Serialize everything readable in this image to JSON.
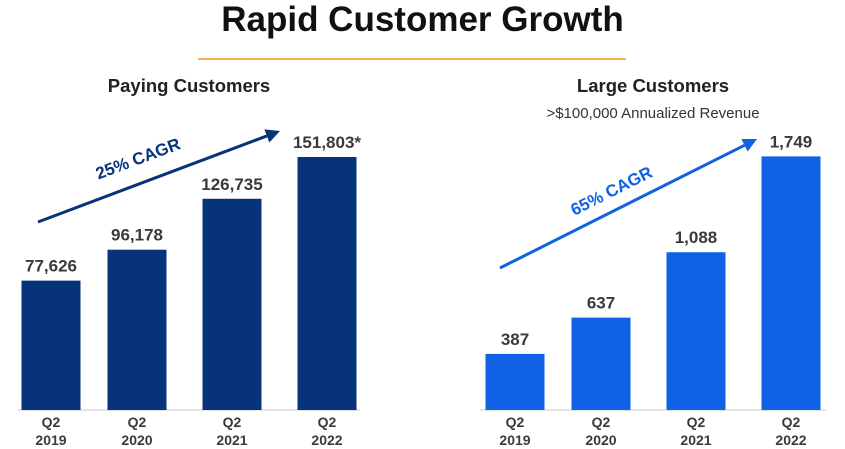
{
  "page": {
    "title": "Rapid Customer Growth",
    "accent_color": "#f5b14a"
  },
  "chart_data": [
    {
      "type": "bar",
      "title": "Paying Customers",
      "subtitle": "",
      "categories": [
        [
          "Q2",
          "2019"
        ],
        [
          "Q2",
          "2020"
        ],
        [
          "Q2",
          "2021"
        ],
        [
          "Q2",
          "2022"
        ]
      ],
      "values": [
        77626,
        96178,
        126735,
        151803
      ],
      "value_labels": [
        "77,626",
        "96,178",
        "126,735",
        "151,803*"
      ],
      "ylim": [
        0,
        180000
      ],
      "grid": false,
      "bar_color": "#07337a",
      "annotation": {
        "text": "25% CAGR",
        "color": "#07337a"
      },
      "xlabel": "",
      "ylabel": ""
    },
    {
      "type": "bar",
      "title": "Large Customers",
      "subtitle": ">$100,000 Annualized Revenue",
      "categories": [
        [
          "Q2",
          "2019"
        ],
        [
          "Q2",
          "2020"
        ],
        [
          "Q2",
          "2021"
        ],
        [
          "Q2",
          "2022"
        ]
      ],
      "values": [
        387,
        637,
        1088,
        1749
      ],
      "value_labels": [
        "387",
        "637",
        "1,088",
        "1,749"
      ],
      "ylim": [
        0,
        2000
      ],
      "grid": false,
      "bar_color": "#0f62e4",
      "annotation": {
        "text": "65% CAGR",
        "color": "#0f62e4"
      },
      "xlabel": "",
      "ylabel": ""
    }
  ]
}
